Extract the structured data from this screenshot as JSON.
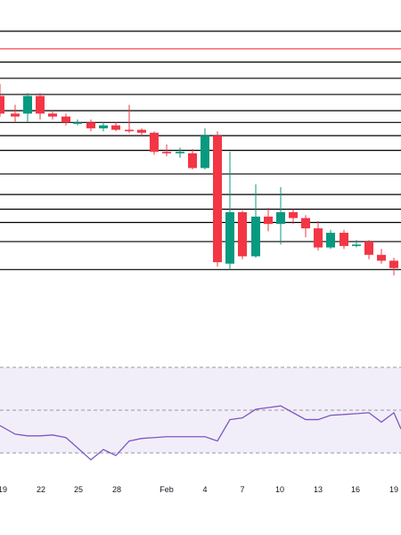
{
  "chart_data": [
    {
      "type": "candlestick",
      "title": "",
      "colors": {
        "up": "#089981",
        "down": "#f23645",
        "wick": "#9598a1"
      },
      "horizontal_levels": {
        "black_lines": [
          1.0,
          0.895,
          0.84,
          0.785,
          0.73,
          0.69,
          0.645,
          0.595,
          0.515,
          0.445,
          0.395,
          0.35,
          0.285,
          0.19
        ],
        "red_line": 0.94,
        "color_black": "#000000",
        "color_red": "#f23645"
      },
      "candles": [
        {
          "x": 0,
          "o": 0.78,
          "c": 0.72,
          "h": 0.82,
          "l": 0.71
        },
        {
          "x": 17,
          "o": 0.72,
          "c": 0.71,
          "h": 0.75,
          "l": 0.69
        },
        {
          "x": 31,
          "o": 0.72,
          "c": 0.78,
          "h": 0.79,
          "l": 0.69
        },
        {
          "x": 45,
          "o": 0.78,
          "c": 0.72,
          "h": 0.79,
          "l": 0.7
        },
        {
          "x": 59,
          "o": 0.72,
          "c": 0.71,
          "h": 0.73,
          "l": 0.7
        },
        {
          "x": 74,
          "o": 0.71,
          "c": 0.69,
          "h": 0.72,
          "l": 0.68
        },
        {
          "x": 87,
          "o": 0.69,
          "c": 0.69,
          "h": 0.7,
          "l": 0.68
        },
        {
          "x": 102,
          "o": 0.69,
          "c": 0.67,
          "h": 0.7,
          "l": 0.66
        },
        {
          "x": 116,
          "o": 0.67,
          "c": 0.68,
          "h": 0.69,
          "l": 0.66
        },
        {
          "x": 130,
          "o": 0.68,
          "c": 0.665,
          "h": 0.69,
          "l": 0.66
        },
        {
          "x": 145,
          "o": 0.665,
          "c": 0.66,
          "h": 0.75,
          "l": 0.655
        },
        {
          "x": 159,
          "o": 0.665,
          "c": 0.655,
          "h": 0.67,
          "l": 0.645
        },
        {
          "x": 173,
          "o": 0.655,
          "c": 0.59,
          "h": 0.66,
          "l": 0.58
        },
        {
          "x": 187,
          "o": 0.59,
          "c": 0.585,
          "h": 0.615,
          "l": 0.575
        },
        {
          "x": 202,
          "o": 0.585,
          "c": 0.59,
          "h": 0.605,
          "l": 0.57
        },
        {
          "x": 216,
          "o": 0.585,
          "c": 0.535,
          "h": 0.6,
          "l": 0.53
        },
        {
          "x": 230,
          "o": 0.535,
          "c": 0.645,
          "h": 0.67,
          "l": 0.53
        },
        {
          "x": 244,
          "o": 0.645,
          "c": 0.215,
          "h": 0.66,
          "l": 0.2
        },
        {
          "x": 258,
          "o": 0.21,
          "c": 0.385,
          "h": 0.59,
          "l": 0.19
        },
        {
          "x": 272,
          "o": 0.385,
          "c": 0.235,
          "h": 0.39,
          "l": 0.225
        },
        {
          "x": 287,
          "o": 0.235,
          "c": 0.37,
          "h": 0.48,
          "l": 0.23
        },
        {
          "x": 301,
          "o": 0.37,
          "c": 0.345,
          "h": 0.4,
          "l": 0.32
        },
        {
          "x": 315,
          "o": 0.345,
          "c": 0.385,
          "h": 0.47,
          "l": 0.275
        },
        {
          "x": 329,
          "o": 0.385,
          "c": 0.365,
          "h": 0.395,
          "l": 0.345
        },
        {
          "x": 343,
          "o": 0.365,
          "c": 0.33,
          "h": 0.375,
          "l": 0.3
        },
        {
          "x": 357,
          "o": 0.33,
          "c": 0.265,
          "h": 0.355,
          "l": 0.255
        },
        {
          "x": 371,
          "o": 0.265,
          "c": 0.315,
          "h": 0.325,
          "l": 0.26
        },
        {
          "x": 386,
          "o": 0.315,
          "c": 0.27,
          "h": 0.325,
          "l": 0.26
        },
        {
          "x": 400,
          "o": 0.27,
          "c": 0.275,
          "h": 0.29,
          "l": 0.265
        },
        {
          "x": 414,
          "o": 0.285,
          "c": 0.24,
          "h": 0.29,
          "l": 0.225
        },
        {
          "x": 428,
          "o": 0.24,
          "c": 0.22,
          "h": 0.26,
          "l": 0.21
        },
        {
          "x": 442,
          "o": 0.22,
          "c": 0.195,
          "h": 0.23,
          "l": 0.17
        }
      ]
    },
    {
      "type": "line",
      "title": "",
      "colors": {
        "line": "#7e57c2",
        "band": "#7e57c2",
        "dashed": "#9598a1"
      },
      "band": [
        0,
        1
      ],
      "dashed_levels": [
        1,
        0.5,
        0
      ],
      "x": [
        0,
        17,
        31,
        45,
        59,
        74,
        87,
        102,
        116,
        130,
        145,
        159,
        173,
        187,
        202,
        216,
        230,
        244,
        258,
        272,
        287,
        301,
        315,
        329,
        343,
        357,
        371,
        386,
        400,
        414,
        428,
        442,
        450
      ],
      "values": [
        0.32,
        0.22,
        0.2,
        0.2,
        0.21,
        0.18,
        0.06,
        -0.08,
        0.04,
        -0.03,
        0.14,
        0.17,
        0.18,
        0.19,
        0.19,
        0.19,
        0.19,
        0.14,
        0.39,
        0.41,
        0.51,
        0.53,
        0.55,
        0.47,
        0.39,
        0.39,
        0.44,
        0.45,
        0.46,
        0.47,
        0.36,
        0.47,
        0.28
      ]
    }
  ],
  "x_axis": {
    "tick_labels": [
      "19",
      "22",
      "25",
      "28",
      "Feb",
      "4",
      "7",
      "10",
      "13",
      "16",
      "19"
    ],
    "tick_x": [
      3,
      46,
      88,
      131,
      187,
      230,
      272,
      314,
      357,
      399,
      442
    ]
  }
}
